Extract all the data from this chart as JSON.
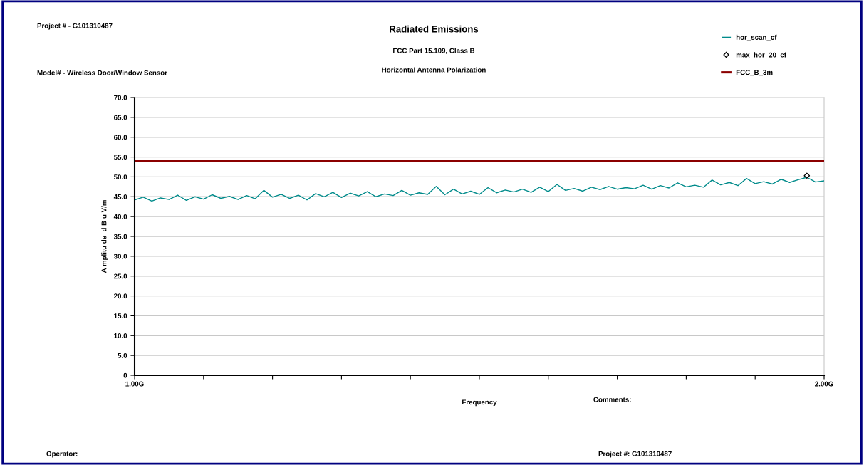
{
  "chart_data": {
    "type": "line",
    "title": "Radiated Emissions",
    "subtitle": "FCC Part 15.109, Class B",
    "xlabel": "Frequency",
    "ylabel": "A mplitu de  d B u V/m",
    "annotations": [
      "Horizontal Antenna Polarization",
      "Project # - G101310487",
      "Model# - Wireless Door/Window Sensor",
      "Comments:",
      "Operator:",
      "Project #: G101310487"
    ],
    "xlim": [
      1.0,
      2.0
    ],
    "xticks": [
      {
        "value": 1.0,
        "label": "1.00G"
      },
      {
        "value": 1.1,
        "label": null
      },
      {
        "value": 1.2,
        "label": null
      },
      {
        "value": 1.3,
        "label": null
      },
      {
        "value": 1.4,
        "label": null
      },
      {
        "value": 1.5,
        "label": null
      },
      {
        "value": 1.6,
        "label": null
      },
      {
        "value": 1.7,
        "label": null
      },
      {
        "value": 1.8,
        "label": null
      },
      {
        "value": 1.9,
        "label": null
      },
      {
        "value": 2.0,
        "label": "2.00G"
      }
    ],
    "ylim": [
      0,
      70
    ],
    "yticks": [
      0,
      {
        "value": 5,
        "label": "5.0"
      },
      {
        "value": 10,
        "label": "10.0"
      },
      {
        "value": 15,
        "label": "15.0"
      },
      {
        "value": 20,
        "label": "20.0"
      },
      {
        "value": 25,
        "label": "25.0"
      },
      {
        "value": 30,
        "label": "30.0"
      },
      {
        "value": 35,
        "label": "35.0"
      },
      {
        "value": 40,
        "label": "40.0"
      },
      {
        "value": 45,
        "label": "45.0"
      },
      {
        "value": 50,
        "label": "50.0"
      },
      {
        "value": 55,
        "label": "55.0"
      },
      {
        "value": 60,
        "label": "60.0"
      },
      {
        "value": 65,
        "label": "65.0"
      },
      {
        "value": 70,
        "label": "70.0"
      }
    ],
    "grid": "y",
    "legend": "top right",
    "series": [
      {
        "name": "hor_scan_cf",
        "color": "#008b8b",
        "marker": "none",
        "x": [
          1.0,
          1.0125,
          1.025,
          1.0375,
          1.05,
          1.0625,
          1.075,
          1.0875,
          1.1,
          1.1125,
          1.125,
          1.1375,
          1.15,
          1.1625,
          1.175,
          1.1875,
          1.2,
          1.2125,
          1.225,
          1.2375,
          1.25,
          1.2625,
          1.275,
          1.2875,
          1.3,
          1.3125,
          1.325,
          1.3375,
          1.35,
          1.3625,
          1.375,
          1.3875,
          1.4,
          1.4125,
          1.425,
          1.4375,
          1.45,
          1.4625,
          1.475,
          1.4875,
          1.5,
          1.5125,
          1.525,
          1.5375,
          1.55,
          1.5625,
          1.575,
          1.5875,
          1.6,
          1.6125,
          1.625,
          1.6375,
          1.65,
          1.6625,
          1.675,
          1.6875,
          1.7,
          1.7125,
          1.725,
          1.7375,
          1.75,
          1.7625,
          1.775,
          1.7875,
          1.8,
          1.8125,
          1.825,
          1.8375,
          1.85,
          1.8625,
          1.875,
          1.8875,
          1.9,
          1.9125,
          1.925,
          1.9375,
          1.95,
          1.9625,
          1.975,
          1.9875,
          2.0
        ],
        "values": [
          44.2,
          44.9,
          43.9,
          44.7,
          44.3,
          45.4,
          44.1,
          45.0,
          44.4,
          45.5,
          44.6,
          45.1,
          44.3,
          45.3,
          44.5,
          46.6,
          44.9,
          45.6,
          44.6,
          45.4,
          44.2,
          45.8,
          45.0,
          46.1,
          44.8,
          45.9,
          45.2,
          46.3,
          45.0,
          45.7,
          45.3,
          46.6,
          45.4,
          46.0,
          45.6,
          47.6,
          45.5,
          46.9,
          45.7,
          46.4,
          45.6,
          47.3,
          46.0,
          46.7,
          46.2,
          46.9,
          46.1,
          47.4,
          46.3,
          48.1,
          46.6,
          47.1,
          46.4,
          47.4,
          46.8,
          47.6,
          46.9,
          47.3,
          47.0,
          47.9,
          46.9,
          47.8,
          47.2,
          48.5,
          47.5,
          47.9,
          47.4,
          49.2,
          48.0,
          48.6,
          47.8,
          49.6,
          48.3,
          48.8,
          48.2,
          49.4,
          48.6,
          49.3,
          49.9,
          48.7,
          49.0
        ]
      },
      {
        "name": "max_hor_20_cf",
        "type": "scatter",
        "color": "#000000",
        "marker": "diamond",
        "x": [
          1.975
        ],
        "values": [
          50.3
        ]
      },
      {
        "name": "FCC_B_3m",
        "color": "#8b0000",
        "marker": "none",
        "x": [
          1.0,
          2.0
        ],
        "values": [
          54.0,
          54.0
        ]
      }
    ]
  }
}
